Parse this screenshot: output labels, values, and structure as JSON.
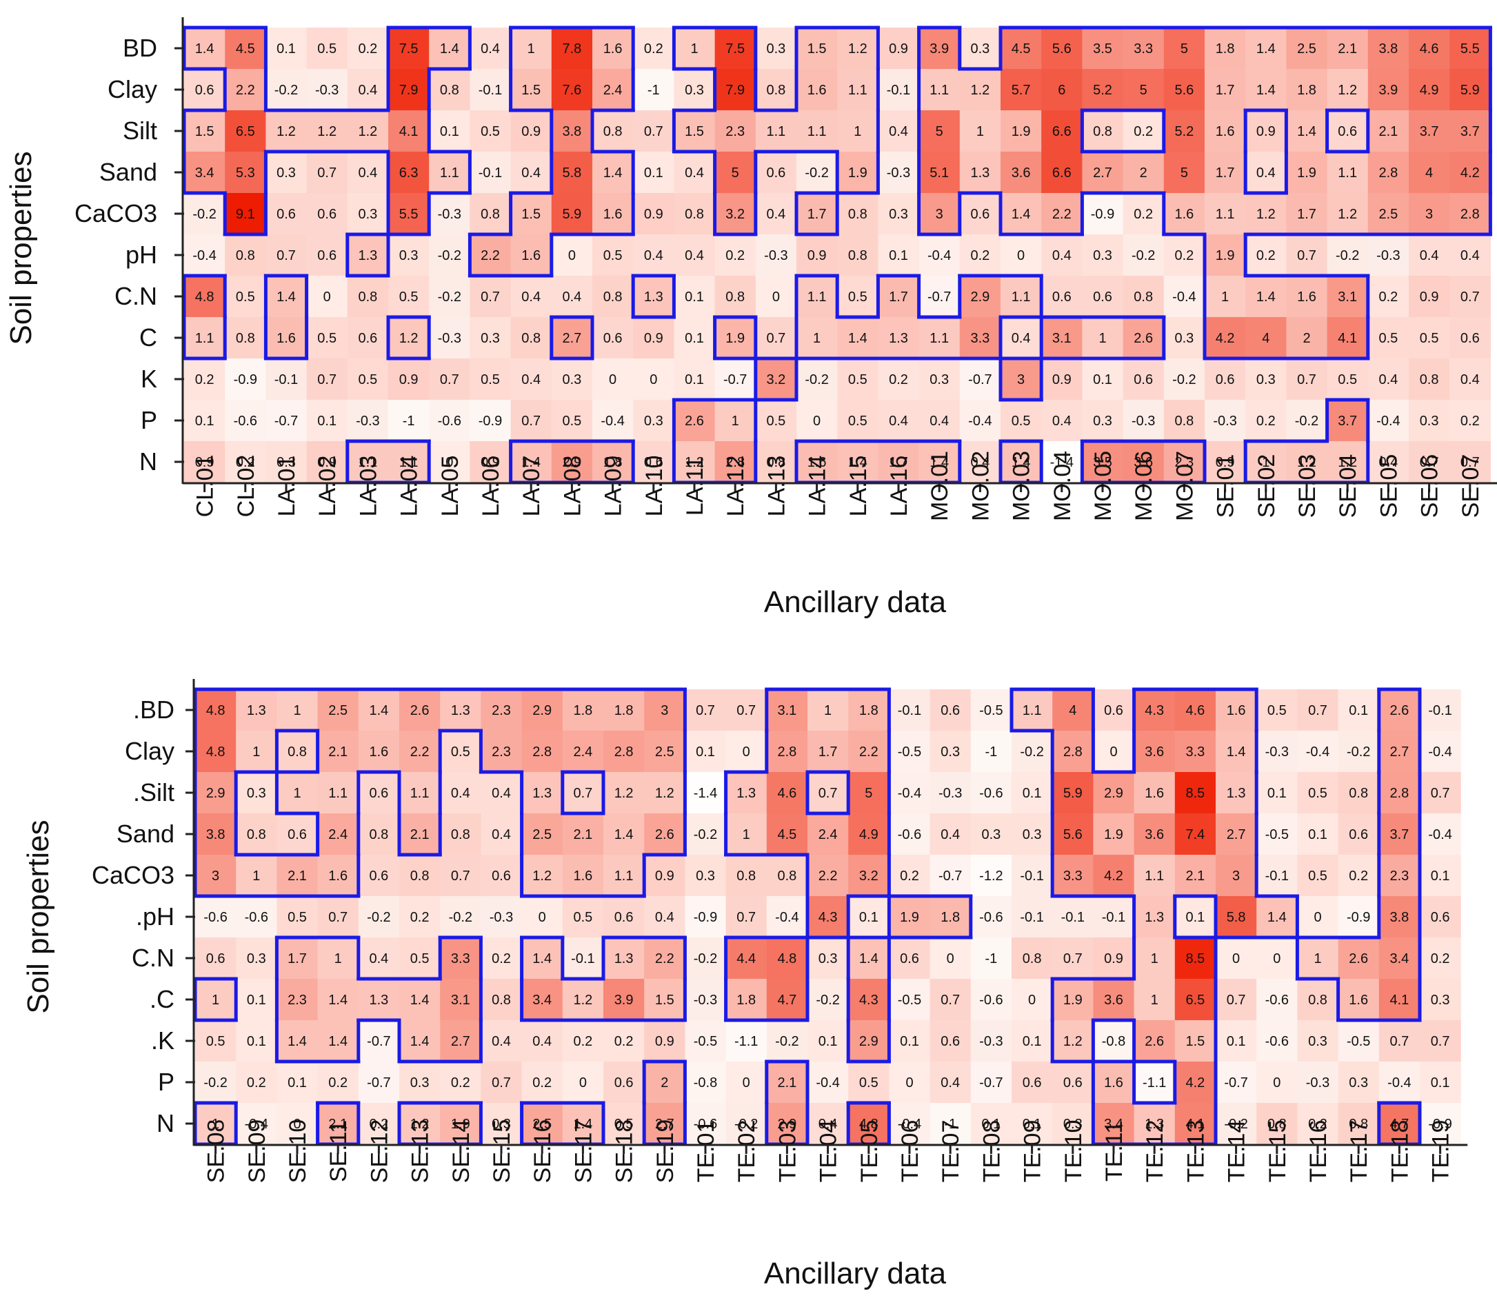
{
  "chart_data": [
    {
      "type": "heatmap",
      "xlabel": "Ancillary data",
      "ylabel": "Soil properties",
      "rows": [
        "BD",
        "Clay",
        "Silt",
        "Sand",
        "CaCO3",
        "pH",
        "C.N",
        "C",
        "K",
        "P",
        "N"
      ],
      "columns": [
        "CL.01",
        "CL.02",
        "LA.01",
        "LA.02",
        "LA.03",
        "LA.04",
        "LA.05",
        "LA.06",
        "LA.07",
        "LA.08",
        "LA.09",
        "LA.10",
        "LA.11",
        "LA.12",
        "LA.13",
        "LA.14",
        "LA.15",
        "LA.16",
        "MO.01",
        "MO.02",
        "MO.03",
        "MO.04",
        "MO.05",
        "MO.06",
        "MO.07",
        "SE.01",
        "SE.02",
        "SE.03",
        "SE.04",
        "SE.05",
        "SE.06",
        "SE.07"
      ],
      "values": [
        [
          1.4,
          4.5,
          0.1,
          0.5,
          0.2,
          7.5,
          1.4,
          0.4,
          1,
          7.8,
          1.6,
          0.2,
          1,
          7.5,
          0.3,
          1.5,
          1.2,
          0.9,
          3.9,
          0.3,
          4.5,
          5.6,
          3.5,
          3.3,
          5,
          1.8,
          1.4,
          2.5,
          2.1,
          3.8,
          4.6,
          5.5
        ],
        [
          0.6,
          2.2,
          -0.2,
          -0.3,
          0.4,
          7.9,
          0.8,
          -0.1,
          1.5,
          7.6,
          2.4,
          -1,
          0.3,
          7.9,
          0.8,
          1.6,
          1.1,
          -0.1,
          1.1,
          1.2,
          5.7,
          6,
          5.2,
          5,
          5.6,
          1.7,
          1.4,
          1.8,
          1.2,
          3.9,
          4.9,
          5.9
        ],
        [
          1.5,
          6.5,
          1.2,
          1.2,
          1.2,
          4.1,
          0.1,
          0.5,
          0.9,
          3.8,
          0.8,
          0.7,
          1.5,
          2.3,
          1.1,
          1.1,
          1,
          0.4,
          5,
          1,
          1.9,
          6.6,
          0.8,
          0.2,
          5.2,
          1.6,
          0.9,
          1.4,
          0.6,
          2.1,
          3.7,
          3.7
        ],
        [
          3.4,
          5.3,
          0.3,
          0.7,
          0.4,
          6.3,
          1.1,
          -0.1,
          0.4,
          5.8,
          1.4,
          0.1,
          0.4,
          5,
          0.6,
          -0.2,
          1.9,
          -0.3,
          5.1,
          1.3,
          3.6,
          6.6,
          2.7,
          2,
          5,
          1.7,
          0.4,
          1.9,
          1.1,
          2.8,
          4,
          4.2
        ],
        [
          -0.2,
          9.1,
          0.6,
          0.6,
          0.3,
          5.5,
          -0.3,
          0.8,
          1.5,
          5.9,
          1.6,
          0.9,
          0.8,
          3.2,
          0.4,
          1.7,
          0.8,
          0.3,
          3,
          0.6,
          1.4,
          2.2,
          -0.9,
          0.2,
          1.6,
          1.1,
          1.2,
          1.7,
          1.2,
          2.5,
          3,
          2.8
        ],
        [
          -0.4,
          0.8,
          0.7,
          0.6,
          1.3,
          0.3,
          -0.2,
          2.2,
          1.6,
          0,
          0.5,
          0.4,
          0.4,
          0.2,
          -0.3,
          0.9,
          0.8,
          0.1,
          -0.4,
          0.2,
          0,
          0.4,
          0.3,
          -0.2,
          0.2,
          1.9,
          0.2,
          0.7,
          -0.2,
          -0.3,
          0.4,
          0.4
        ],
        [
          4.8,
          0.5,
          1.4,
          0,
          0.8,
          0.5,
          -0.2,
          0.7,
          0.4,
          0.4,
          0.8,
          1.3,
          0.1,
          0.8,
          0,
          1.1,
          0.5,
          1.7,
          -0.7,
          2.9,
          1.1,
          0.6,
          0.6,
          0.8,
          -0.4,
          1,
          1.4,
          1.6,
          3.1,
          0.2,
          0.9,
          0.7
        ],
        [
          1.1,
          0.8,
          1.6,
          0.5,
          0.6,
          1.2,
          -0.3,
          0.3,
          0.8,
          2.7,
          0.6,
          0.9,
          0.1,
          1.9,
          0.7,
          1,
          1.4,
          1.3,
          1.1,
          3.3,
          0.4,
          3.1,
          1,
          2.6,
          0.3,
          4.2,
          4,
          2,
          4.1,
          0.5,
          0.5,
          0.6
        ],
        [
          0.2,
          -0.9,
          -0.1,
          0.7,
          0.5,
          0.9,
          0.7,
          0.5,
          0.4,
          0.3,
          0,
          0,
          0.1,
          -0.7,
          3.2,
          -0.2,
          0.5,
          0.2,
          0.3,
          -0.7,
          3,
          0.9,
          0.1,
          0.6,
          -0.2,
          0.6,
          0.3,
          0.7,
          0.5,
          0.4,
          0.8,
          0.4
        ],
        [
          0.1,
          -0.6,
          -0.7,
          0.1,
          -0.3,
          -1,
          -0.6,
          -0.9,
          0.7,
          0.5,
          -0.4,
          0.3,
          2.6,
          1,
          0.5,
          0,
          0.5,
          0.4,
          0.4,
          -0.4,
          0.5,
          0.4,
          0.3,
          -0.3,
          0.8,
          -0.3,
          0.2,
          -0.2,
          3.7,
          -0.4,
          0.3,
          0.2
        ],
        [
          0.9,
          0.2,
          0.3,
          0.9,
          1.1,
          1.1,
          0,
          0.9,
          1.4,
          2.9,
          1.8,
          0.6,
          1.2,
          2.8,
          0.8,
          1.6,
          1.4,
          1.7,
          1.4,
          0.4,
          1.4,
          -1.4,
          3.5,
          3.6,
          2.3,
          0.9,
          1,
          1.2,
          1.2,
          0.4,
          0.7,
          0.7
        ]
      ],
      "highlight_threshold": 1,
      "highlight_color": "#1a1ae6",
      "scale": {
        "low": "#ffffff",
        "high": "#ee1c00",
        "max": 9.1
      }
    },
    {
      "type": "heatmap",
      "xlabel": "Ancillary data",
      "ylabel": "Soil properties",
      "rows": [
        ".BD",
        "Clay",
        ".Silt",
        "Sand",
        "CaCO3",
        ".pH",
        "C.N",
        ".C",
        ".K",
        "P",
        "N"
      ],
      "columns": [
        "SE.08",
        "SE.09",
        "SE.10",
        "SE.11",
        "SE.12",
        "SE.13",
        "SE.14",
        "SE.15",
        "SE.16",
        "SE.17",
        "SE.18",
        "SE.19",
        "TE.01",
        "TE.02",
        "TE.03",
        "TE.04",
        "TE.05",
        "TE.06",
        "TE.07",
        "TE.08",
        "TE.09",
        "TE.10",
        "TE.11",
        "TE.12",
        "TE.13",
        "TE.14",
        "TE.15",
        "TE.16",
        "TE.17",
        "TE.18",
        "TE.19"
      ],
      "values": [
        [
          4.8,
          1.3,
          1,
          2.5,
          1.4,
          2.6,
          1.3,
          2.3,
          2.9,
          1.8,
          1.8,
          3,
          0.7,
          0.7,
          3.1,
          1,
          1.8,
          -0.1,
          0.6,
          -0.5,
          1.1,
          4,
          0.6,
          4.3,
          4.6,
          1.6,
          0.5,
          0.7,
          0.1,
          2.6,
          -0.1
        ],
        [
          4.8,
          1,
          0.8,
          2.1,
          1.6,
          2.2,
          0.5,
          2.3,
          2.8,
          2.4,
          2.8,
          2.5,
          0.1,
          0,
          2.8,
          1.7,
          2.2,
          -0.5,
          0.3,
          -1,
          -0.2,
          2.8,
          0,
          3.6,
          3.3,
          1.4,
          -0.3,
          -0.4,
          -0.2,
          2.7,
          -0.4
        ],
        [
          2.9,
          0.3,
          1,
          1.1,
          0.6,
          1.1,
          0.4,
          0.4,
          1.3,
          0.7,
          1.2,
          1.2,
          -1.4,
          1.3,
          4.6,
          0.7,
          5,
          -0.4,
          -0.3,
          -0.6,
          0.1,
          5.9,
          2.9,
          1.6,
          8.5,
          1.3,
          0.1,
          0.5,
          0.8,
          2.8,
          0.7
        ],
        [
          3.8,
          0.8,
          0.6,
          2.4,
          0.8,
          2.1,
          0.8,
          0.4,
          2.5,
          2.1,
          1.4,
          2.6,
          -0.2,
          1,
          4.5,
          2.4,
          4.9,
          -0.6,
          0.4,
          0.3,
          0.3,
          5.6,
          1.9,
          3.6,
          7.4,
          2.7,
          -0.5,
          0.1,
          0.6,
          3.7,
          -0.4
        ],
        [
          3,
          1,
          2.1,
          1.6,
          0.6,
          0.8,
          0.7,
          0.6,
          1.2,
          1.6,
          1.1,
          0.9,
          0.3,
          0.8,
          0.8,
          2.2,
          3.2,
          0.2,
          -0.7,
          -1.2,
          -0.1,
          3.3,
          4.2,
          1.1,
          2.1,
          3,
          -0.1,
          0.5,
          0.2,
          2.3,
          0.1
        ],
        [
          -0.6,
          -0.6,
          0.5,
          0.7,
          -0.2,
          0.2,
          -0.2,
          -0.3,
          0,
          0.5,
          0.6,
          0.4,
          -0.9,
          0.7,
          -0.4,
          4.3,
          0.1,
          1.9,
          1.8,
          -0.6,
          -0.1,
          -0.1,
          -0.1,
          1.3,
          0.1,
          5.8,
          1.4,
          0,
          -0.9,
          3.8,
          0.6
        ],
        [
          0.6,
          0.3,
          1.7,
          1,
          0.4,
          0.5,
          3.3,
          0.2,
          1.4,
          -0.1,
          1.3,
          2.2,
          -0.2,
          4.4,
          4.8,
          0.3,
          1.4,
          0.6,
          0,
          -1,
          0.8,
          0.7,
          0.9,
          1,
          8.5,
          0,
          0,
          1,
          2.6,
          3.4,
          0.2
        ],
        [
          1,
          0.1,
          2.3,
          1.4,
          1.3,
          1.4,
          3.1,
          0.8,
          3.4,
          1.2,
          3.9,
          1.5,
          -0.3,
          1.8,
          4.7,
          -0.2,
          4.3,
          -0.5,
          0.7,
          -0.6,
          0,
          1.9,
          3.6,
          1,
          6.5,
          0.7,
          -0.6,
          0.8,
          1.6,
          4.1,
          0.3
        ],
        [
          0.5,
          0.1,
          1.4,
          1.4,
          -0.7,
          1.4,
          2.7,
          0.4,
          0.4,
          0.2,
          0.2,
          0.9,
          -0.5,
          -1.1,
          -0.2,
          0.1,
          2.9,
          0.1,
          0.6,
          -0.3,
          0.1,
          1.2,
          -0.8,
          2.6,
          1.5,
          0.1,
          -0.6,
          0.3,
          -0.5,
          0.7,
          0.7
        ],
        [
          -0.2,
          0.2,
          0.1,
          0.2,
          -0.7,
          0.3,
          0.2,
          0.7,
          0.2,
          0,
          0.6,
          2,
          -0.8,
          0,
          2.1,
          -0.4,
          0.5,
          0,
          0.4,
          -0.7,
          0.6,
          0.6,
          1.6,
          -1.1,
          4.2,
          -0.7,
          0,
          -0.3,
          0.3,
          -0.4,
          0.1
        ],
        [
          1,
          -0.4,
          0,
          2.1,
          0.2,
          1.2,
          1.9,
          0.3,
          2.5,
          1.4,
          0.5,
          2.7,
          -0.6,
          -0.2,
          2.9,
          0.4,
          4.8,
          -0.4,
          -1,
          0.1,
          0.1,
          0.3,
          3.4,
          1.3,
          4.1,
          -0.2,
          0.8,
          0.2,
          0.8,
          4.7,
          -0.9
        ]
      ],
      "highlight_threshold": 1,
      "highlight_color": "#1a1ae6",
      "scale": {
        "low": "#ffffff",
        "high": "#ee1c00",
        "max": 9.1
      }
    }
  ]
}
